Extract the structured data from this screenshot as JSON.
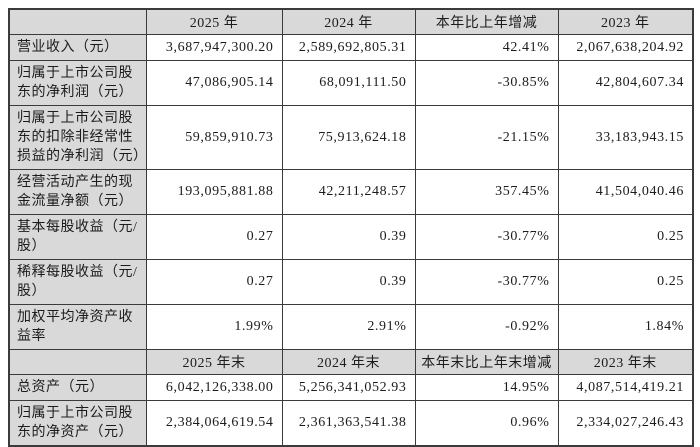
{
  "colors": {
    "header_bg": "#d9d9d9",
    "cell_bg": "#ffffff",
    "border": "#3b3b3b",
    "text": "#1c1c1c"
  },
  "table": {
    "sections": [
      {
        "header": [
          "",
          "2025 年",
          "2024 年",
          "本年比上年增减",
          "2023 年"
        ],
        "rows": [
          {
            "label": "营业收入（元）",
            "values": [
              "3,687,947,300.20",
              "2,589,692,805.31",
              "42.41%",
              "2,067,638,204.92"
            ]
          },
          {
            "label": "归属于上市公司股东的净利润（元）",
            "values": [
              "47,086,905.14",
              "68,091,111.50",
              "-30.85%",
              "42,804,607.34"
            ]
          },
          {
            "label": "归属于上市公司股东的扣除非经常性损益的净利润（元）",
            "values": [
              "59,859,910.73",
              "75,913,624.18",
              "-21.15%",
              "33,183,943.15"
            ]
          },
          {
            "label": "经营活动产生的现金流量净额（元）",
            "values": [
              "193,095,881.88",
              "42,211,248.57",
              "357.45%",
              "41,504,040.46"
            ]
          },
          {
            "label": "基本每股收益（元/股）",
            "values": [
              "0.27",
              "0.39",
              "-30.77%",
              "0.25"
            ]
          },
          {
            "label": "稀释每股收益（元/股）",
            "values": [
              "0.27",
              "0.39",
              "-30.77%",
              "0.25"
            ]
          },
          {
            "label": "加权平均净资产收益率",
            "values": [
              "1.99%",
              "2.91%",
              "-0.92%",
              "1.84%"
            ]
          }
        ]
      },
      {
        "header": [
          "",
          "2025 年末",
          "2024 年末",
          "本年末比上年末增减",
          "2023 年末"
        ],
        "rows": [
          {
            "label": "总资产（元）",
            "values": [
              "6,042,126,338.00",
              "5,256,341,052.93",
              "14.95%",
              "4,087,514,419.21"
            ]
          },
          {
            "label": "归属于上市公司股东的净资产（元）",
            "values": [
              "2,384,064,619.54",
              "2,361,363,541.38",
              "0.96%",
              "2,334,027,246.43"
            ]
          }
        ]
      }
    ]
  }
}
